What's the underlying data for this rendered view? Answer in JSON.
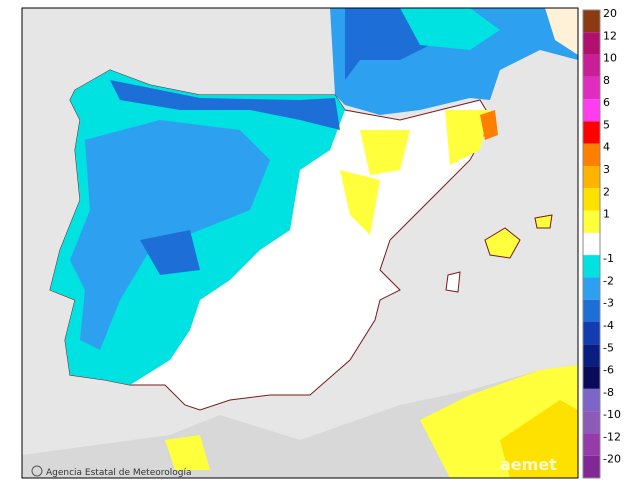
{
  "map": {
    "legend": [
      {
        "label": "20",
        "color": "#8b3a12"
      },
      {
        "label": "12",
        "color": "#b0106e"
      },
      {
        "label": "10",
        "color": "#c81e96"
      },
      {
        "label": "8",
        "color": "#e02cc0"
      },
      {
        "label": "6",
        "color": "#ff3cf0"
      },
      {
        "label": "5",
        "color": "#ff0000"
      },
      {
        "label": "4",
        "color": "#ff7f00"
      },
      {
        "label": "3",
        "color": "#ffb400"
      },
      {
        "label": "2",
        "color": "#ffe100"
      },
      {
        "label": "1",
        "color": "#ffff3c"
      },
      {
        "label": "-1",
        "color": "#00e1e1"
      },
      {
        "label": "-2",
        "color": "#2ea0f0"
      },
      {
        "label": "-3",
        "color": "#1e6ed7"
      },
      {
        "label": "-4",
        "color": "#123caf"
      },
      {
        "label": "-5",
        "color": "#0a1e82"
      },
      {
        "label": "-6",
        "color": "#0a0a5a"
      },
      {
        "label": "-8",
        "color": "#7d64c8"
      },
      {
        "label": "-10",
        "color": "#8c5ab9"
      },
      {
        "label": "-12",
        "color": "#963caa"
      },
      {
        "label": "-20",
        "color": "#822896"
      }
    ],
    "credit": "Agencia Estatal de Meteorología",
    "logo": "aemet"
  }
}
